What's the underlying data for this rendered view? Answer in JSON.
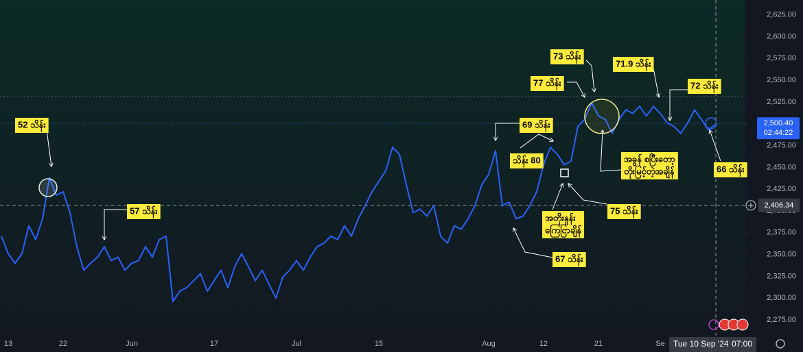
{
  "chart_data": {
    "type": "line",
    "categories": [
      null,
      "13",
      null,
      null,
      null,
      null,
      null,
      null,
      null,
      "22",
      null,
      null,
      null,
      null,
      null,
      null,
      null,
      null,
      null,
      "Jun",
      null,
      null,
      null,
      null,
      null,
      null,
      null,
      null,
      null,
      null,
      null,
      "17",
      null,
      null,
      null,
      null,
      null,
      null,
      null,
      null,
      null,
      null,
      null,
      "Jul",
      null,
      null,
      null,
      null,
      null,
      null,
      null,
      null,
      null,
      null,
      null,
      "15",
      null,
      null,
      null,
      null,
      null,
      null,
      null,
      null,
      null,
      null,
      null,
      null,
      null,
      null,
      null,
      "Aug",
      null,
      null,
      null,
      null,
      null,
      null,
      null,
      "12",
      null,
      null,
      null,
      null,
      null,
      null,
      null,
      "21",
      null,
      null,
      null,
      null,
      null,
      null,
      null,
      null,
      "Se",
      null,
      null,
      null,
      null,
      null,
      null,
      null,
      null
    ],
    "values": [
      2371,
      2351,
      2340,
      2351,
      2383,
      2367,
      2391,
      2438,
      2418,
      2422,
      2398,
      2359,
      2332,
      2340,
      2347,
      2359,
      2343,
      2347,
      2332,
      2340,
      2343,
      2359,
      2347,
      2367,
      2371,
      2296,
      2308,
      2312,
      2320,
      2328,
      2308,
      2320,
      2332,
      2312,
      2336,
      2351,
      2336,
      2320,
      2332,
      2316,
      2300,
      2324,
      2332,
      2343,
      2332,
      2347,
      2359,
      2363,
      2371,
      2367,
      2383,
      2371,
      2391,
      2406,
      2422,
      2434,
      2446,
      2473,
      2465,
      2430,
      2398,
      2402,
      2394,
      2406,
      2371,
      2363,
      2383,
      2379,
      2391,
      2406,
      2430,
      2442,
      2469,
      2406,
      2410,
      2391,
      2394,
      2406,
      2422,
      2453,
      2473,
      2465,
      2453,
      2457,
      2497,
      2505,
      2524,
      2509,
      2505,
      2489,
      2505,
      2516,
      2512,
      2520,
      2509,
      2520,
      2512,
      2501,
      2497,
      2489,
      2501,
      2516,
      2505,
      2493,
      2499
    ],
    "color": "#2962ff",
    "ylim": [
      2257,
      2642
    ],
    "yticks": [
      {
        "value": 2275,
        "label": "2,275.00"
      },
      {
        "value": 2300,
        "label": "2,300.00"
      },
      {
        "value": 2325,
        "label": "2,325.00"
      },
      {
        "value": 2350,
        "label": "2,350.00"
      },
      {
        "value": 2375,
        "label": "2,375.00"
      },
      {
        "value": 2400,
        "label": "2,400.00"
      },
      {
        "value": 2425,
        "label": "2,425.00"
      },
      {
        "value": 2450,
        "label": "2,450.00"
      },
      {
        "value": 2475,
        "label": "2,475.00"
      },
      {
        "value": 2500,
        "label": "2,500.00"
      },
      {
        "value": 2525,
        "label": "2,525.00"
      },
      {
        "value": 2550,
        "label": "2,550.00"
      },
      {
        "value": 2575,
        "label": "2,575.00"
      },
      {
        "value": 2600,
        "label": "2,600.00"
      },
      {
        "value": 2625,
        "label": "2,625.00"
      }
    ],
    "grid": false,
    "last_price": {
      "value": 2500.4,
      "label": "2,500.40"
    },
    "countdown": "02:44:22",
    "crosshair_price": {
      "value": 2406.34,
      "label": "2,406.34"
    },
    "crosshair_date": [
      "Tue 10 Sep '24",
      "07:00"
    ],
    "annotations": [
      [
        "52 သိန်း"
      ],
      [
        "57 သိန်း"
      ],
      [
        "69 သိန်း"
      ],
      [
        "သိန်း 80"
      ],
      [
        "77 သိန်း"
      ],
      [
        "73 သိန်း"
      ],
      [
        "71.9 သိန်း"
      ],
      [
        "72 သိန်း"
      ],
      [
        "66 သိန်း"
      ],
      [
        "75 သိန်း"
      ],
      [
        "67 သိန်း"
      ],
      [
        "အတိုးနှုန်း",
        "ကြေငြာချိန်"
      ],
      [
        "အခွန် စပြီးတော့",
        "တိုးမြင့်တဲ့အချိန်"
      ]
    ]
  }
}
